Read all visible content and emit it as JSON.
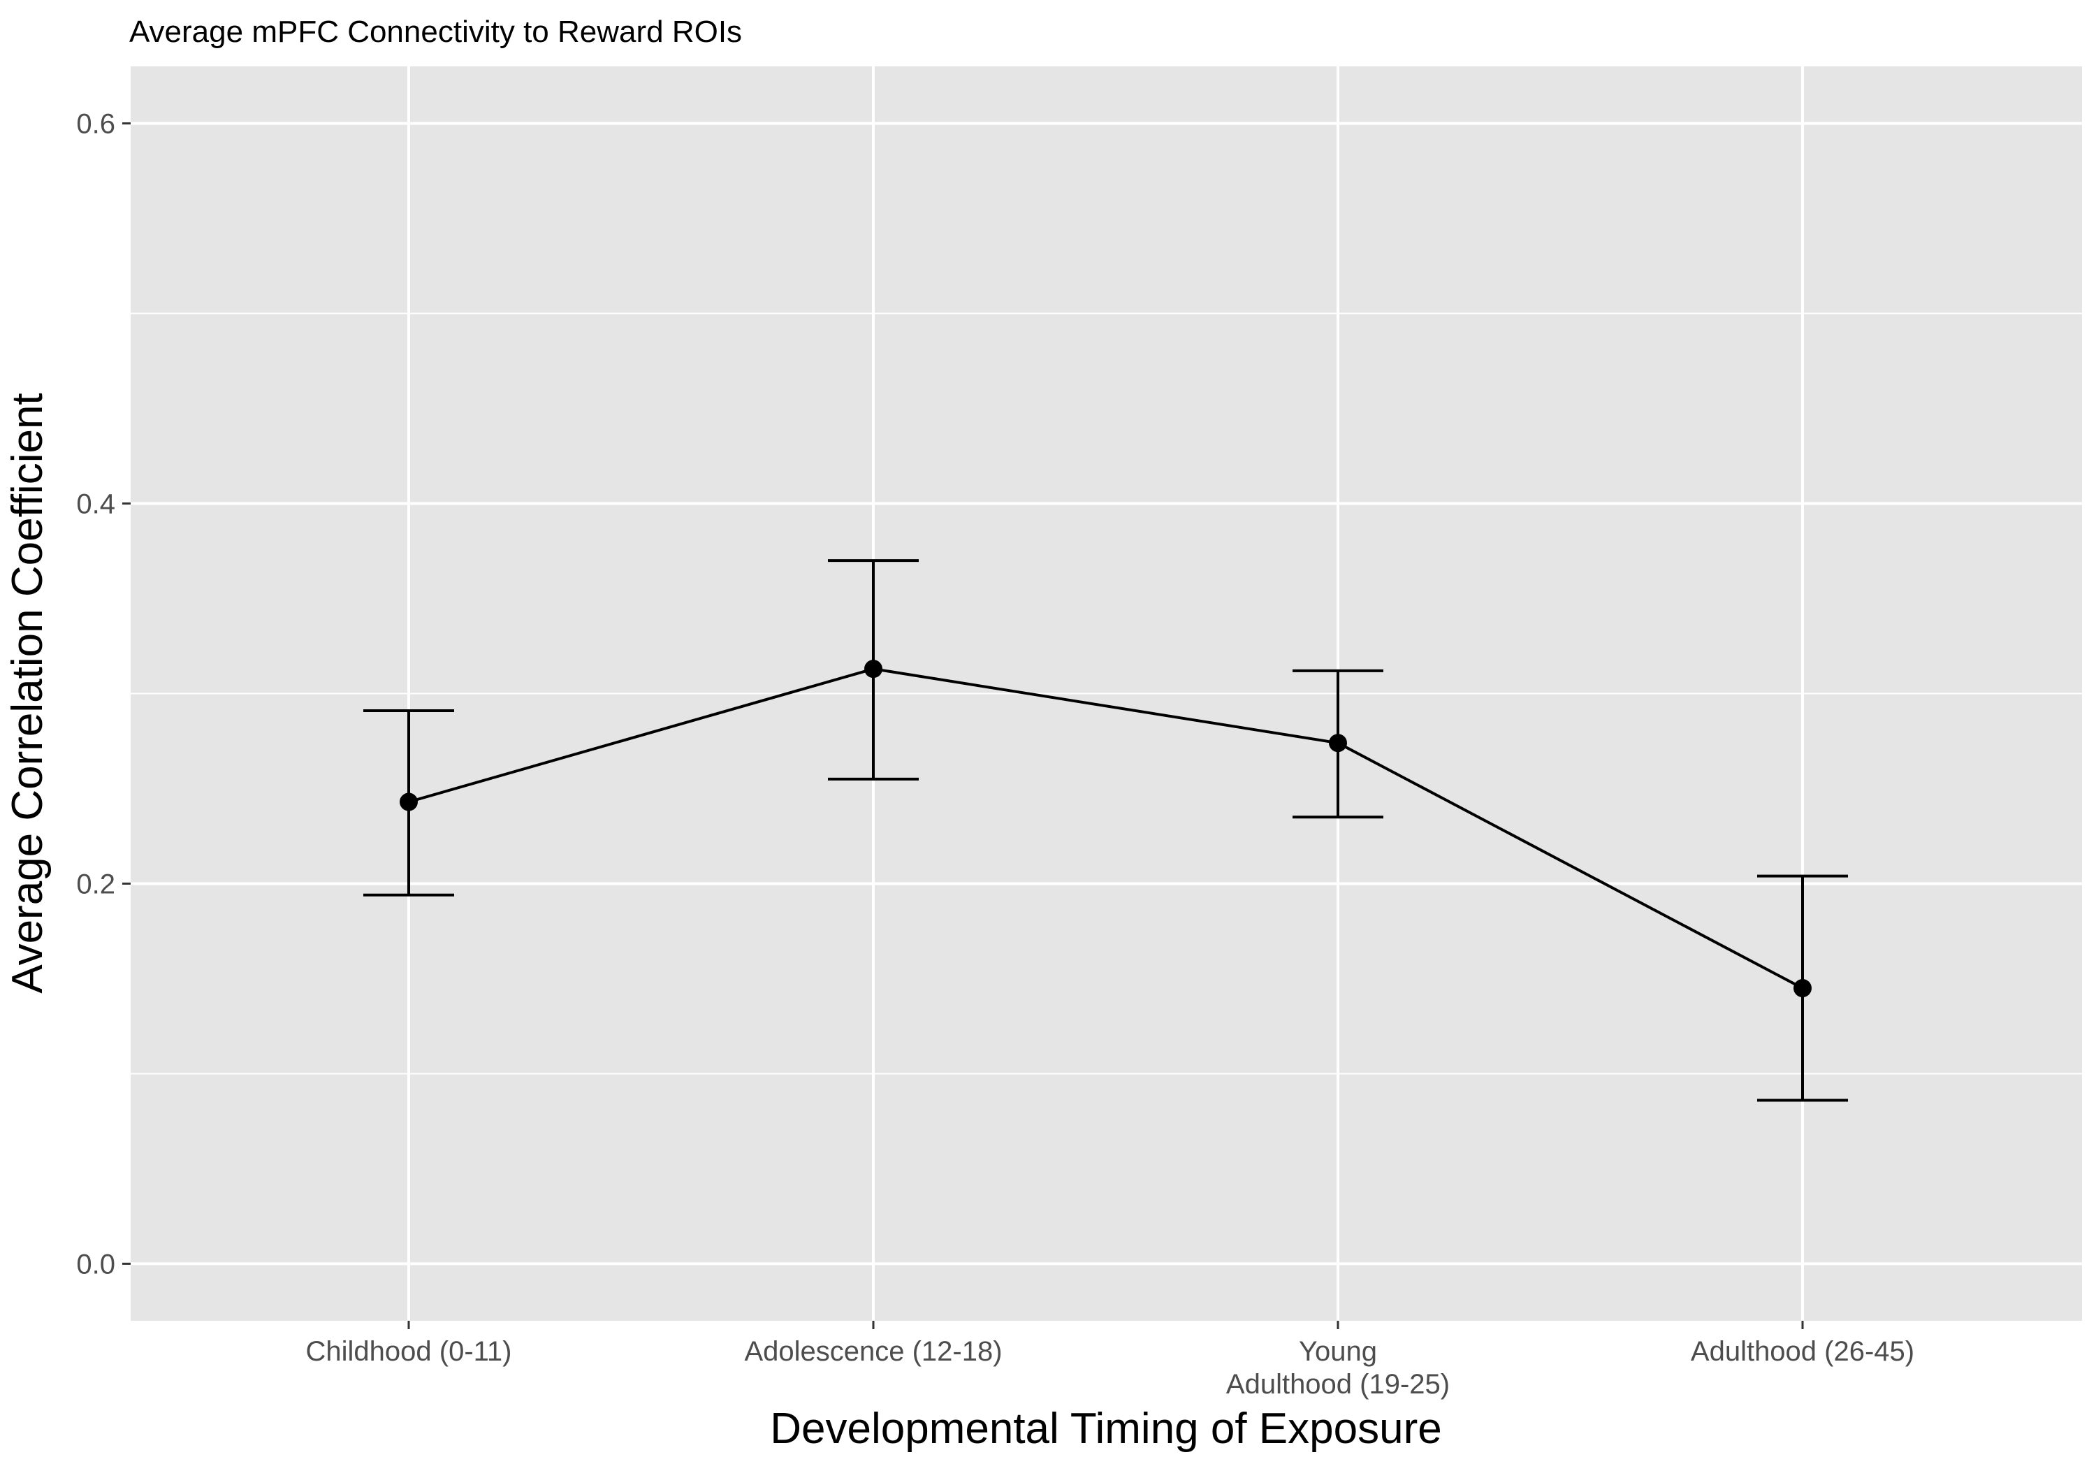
{
  "chart_data": {
    "type": "line",
    "title": "Average mPFC Connectivity to Reward ROIs",
    "xlabel": "Developmental Timing of Exposure",
    "ylabel": "Average Correlation Coefficient",
    "categories": [
      [
        "Childhood (0-11)"
      ],
      [
        "Adolescence (12-18)"
      ],
      [
        "Young",
        "Adulthood (19-25)"
      ],
      [
        "Adulthood (26-45)"
      ]
    ],
    "series": [
      {
        "values": [
          0.243,
          0.313,
          0.274,
          0.145
        ],
        "error_low": [
          0.194,
          0.255,
          0.235,
          0.086
        ],
        "error_high": [
          0.291,
          0.37,
          0.312,
          0.204
        ]
      }
    ],
    "y_ticks": [
      0.0,
      0.2,
      0.4,
      0.6
    ],
    "y_tick_labels": [
      "0.0",
      "0.2",
      "0.4",
      "0.6"
    ],
    "ylim": [
      -0.03,
      0.63
    ],
    "grid": true,
    "colors": {
      "panel_background": "#e5e5e5",
      "grid": "#ffffff",
      "series": "#000000",
      "tick_label": "#4d4d4d",
      "tick_mark": "#333333"
    }
  }
}
